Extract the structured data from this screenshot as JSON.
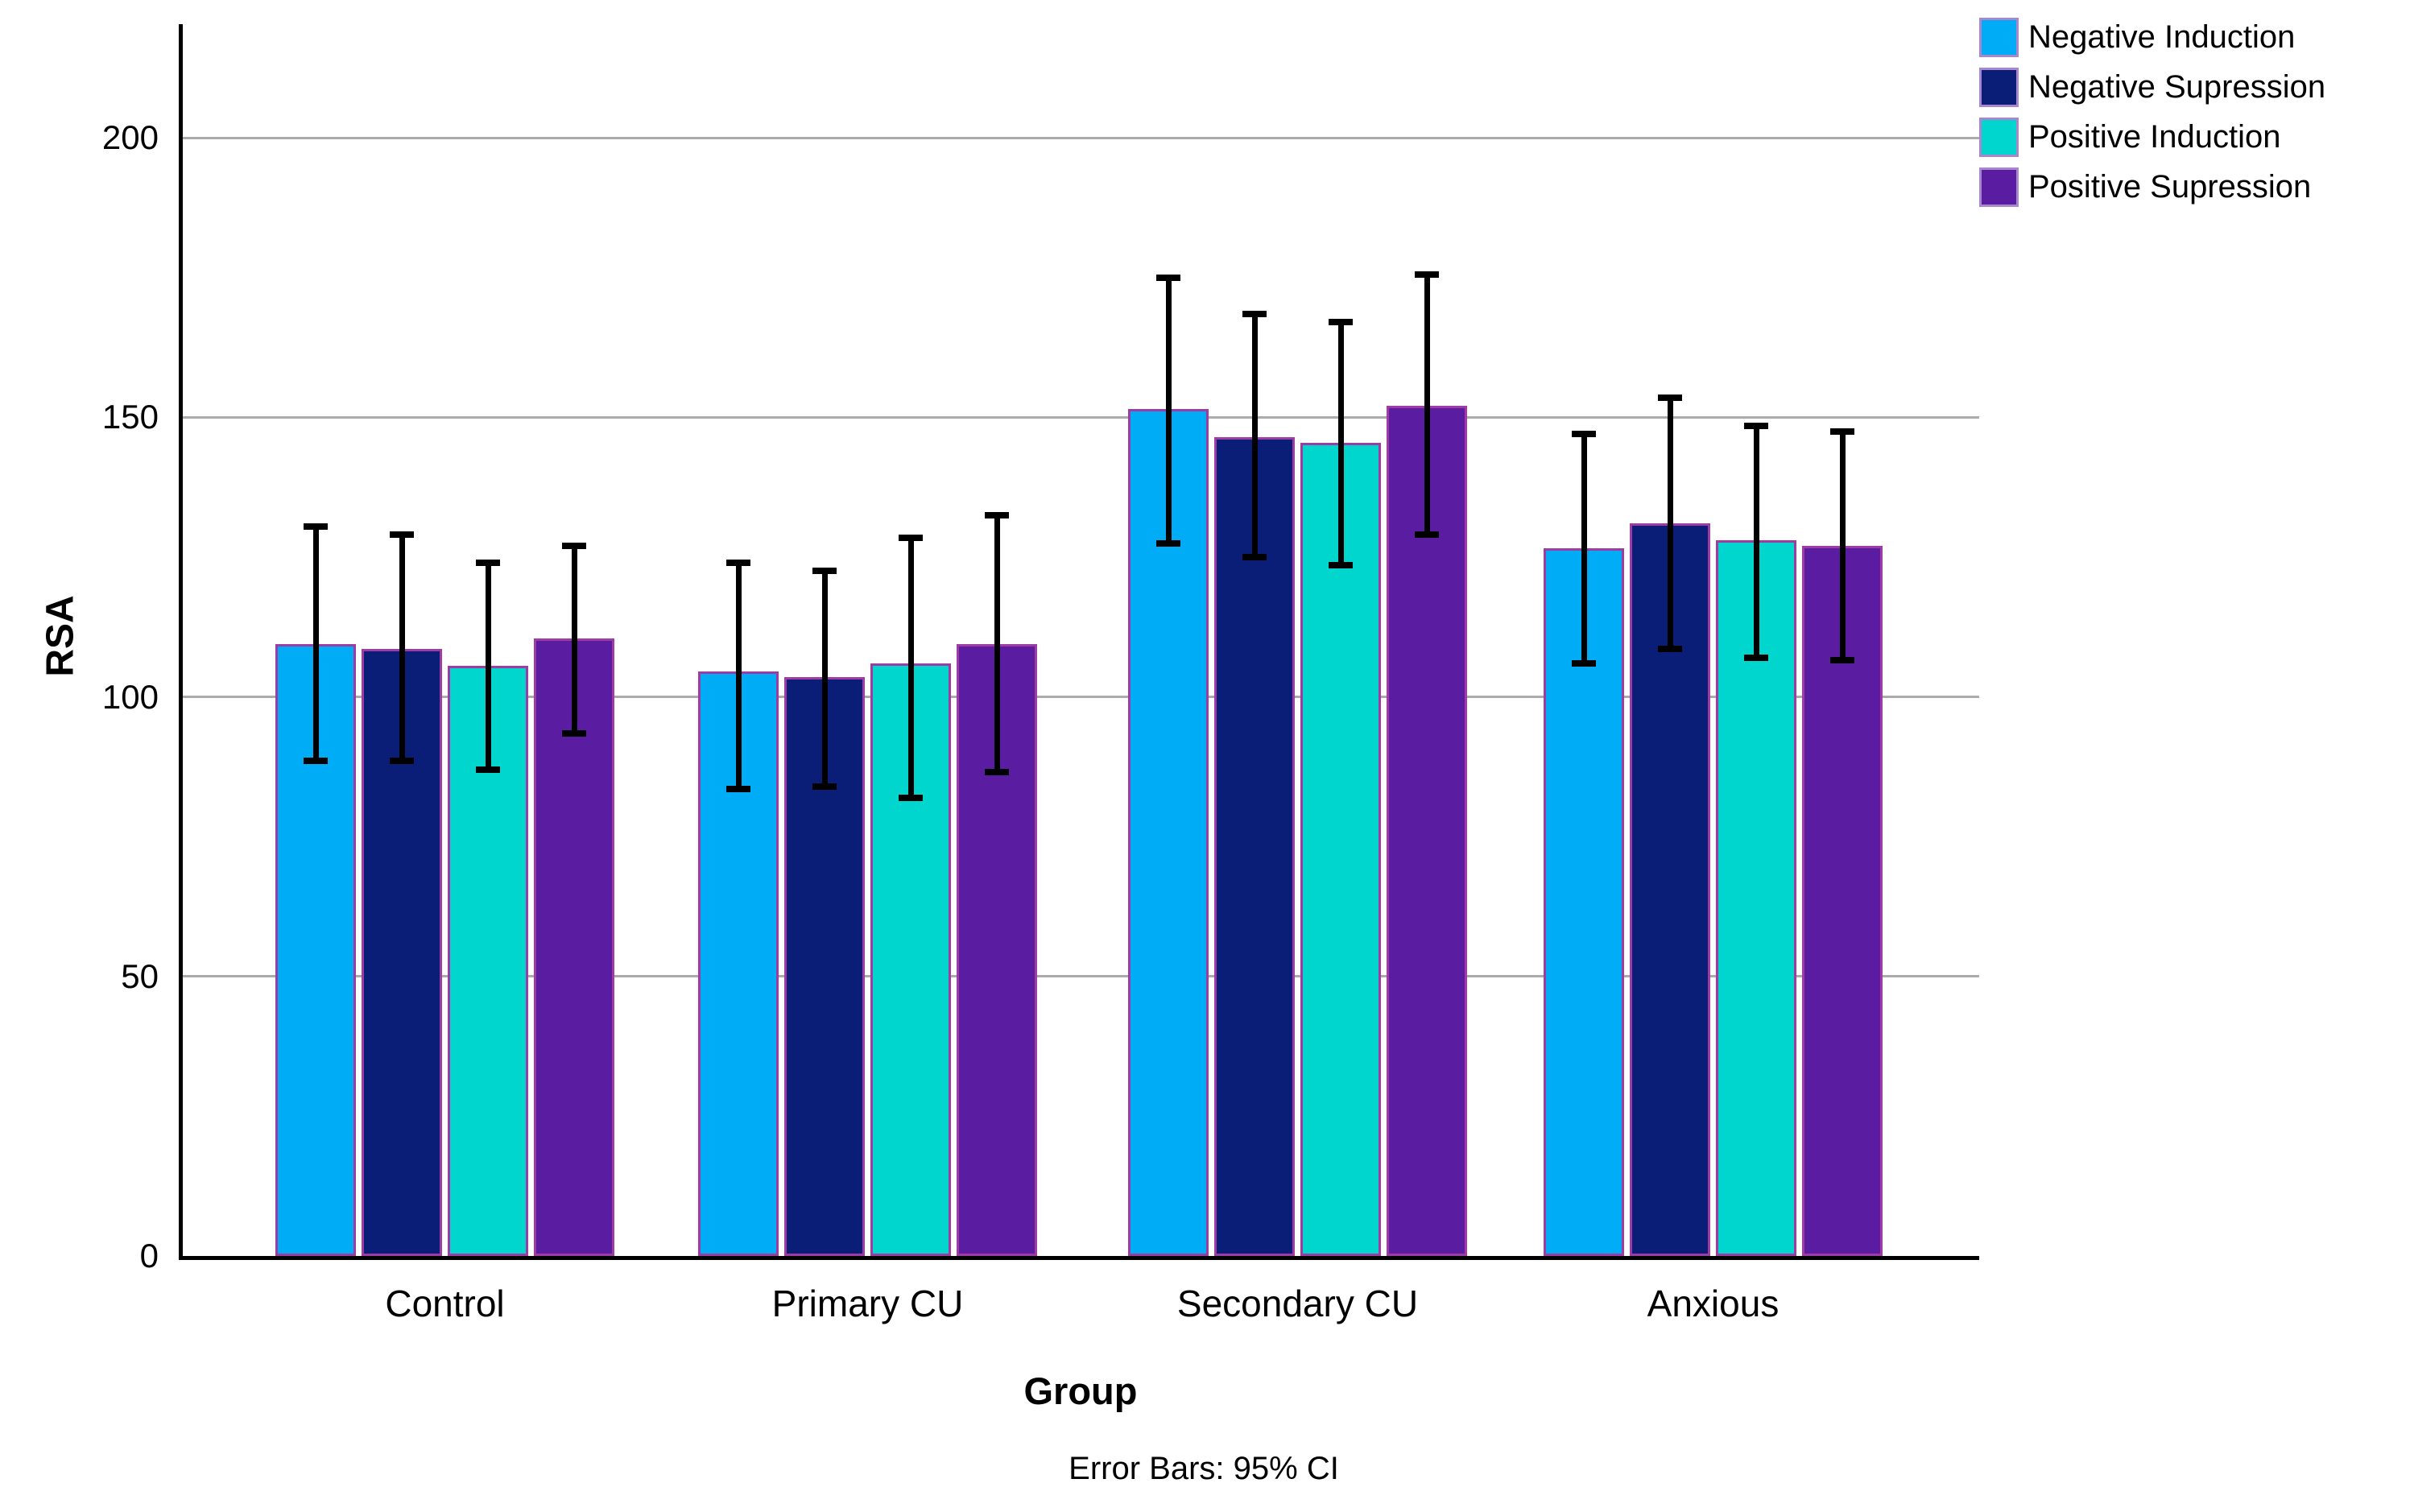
{
  "chart_data": {
    "type": "bar",
    "title": "",
    "ylabel": "RSA",
    "xlabel": "Group",
    "footnote": "Error Bars: 95% CI",
    "error_bars": "95% CI",
    "categories": [
      "Control",
      "Primary CU",
      "Secondary CU",
      "Anxious"
    ],
    "series": [
      {
        "name": "Negative Induction",
        "color": "#00ACF5",
        "values": [
          109.5,
          104.5,
          151.5,
          126.5
        ],
        "ci_low": [
          88.5,
          83.5,
          127.5,
          106.0
        ],
        "ci_high": [
          130.5,
          124.0,
          175.0,
          147.0
        ]
      },
      {
        "name": "Negative Supression",
        "color": "#0A1E78",
        "values": [
          108.5,
          103.5,
          146.5,
          131.0
        ],
        "ci_low": [
          88.5,
          84.0,
          125.0,
          108.5
        ],
        "ci_high": [
          129.0,
          122.5,
          168.5,
          153.5
        ]
      },
      {
        "name": "Positive Induction",
        "color": "#00D5CE",
        "values": [
          105.5,
          106.0,
          145.5,
          128.0
        ],
        "ci_low": [
          87.0,
          82.0,
          123.5,
          107.0
        ],
        "ci_high": [
          124.0,
          128.5,
          167.0,
          148.5
        ]
      },
      {
        "name": "Positive Supression",
        "color": "#5A1DA2",
        "values": [
          110.5,
          109.5,
          152.0,
          127.0
        ],
        "ci_low": [
          93.5,
          86.5,
          129.0,
          106.5
        ],
        "ci_high": [
          127.0,
          132.5,
          175.5,
          147.5
        ]
      }
    ],
    "yticks": [
      0,
      50,
      100,
      150,
      200
    ],
    "ylim": [
      0,
      220
    ],
    "grid": true,
    "legend_position": "top-right"
  },
  "colors": {
    "background": "#FFFFFF",
    "axis": "#000000",
    "grid": "#ABABAB",
    "bar_border": "#9E3CA3",
    "legend_swatch_border": "#A887CE",
    "text": "#000000"
  }
}
